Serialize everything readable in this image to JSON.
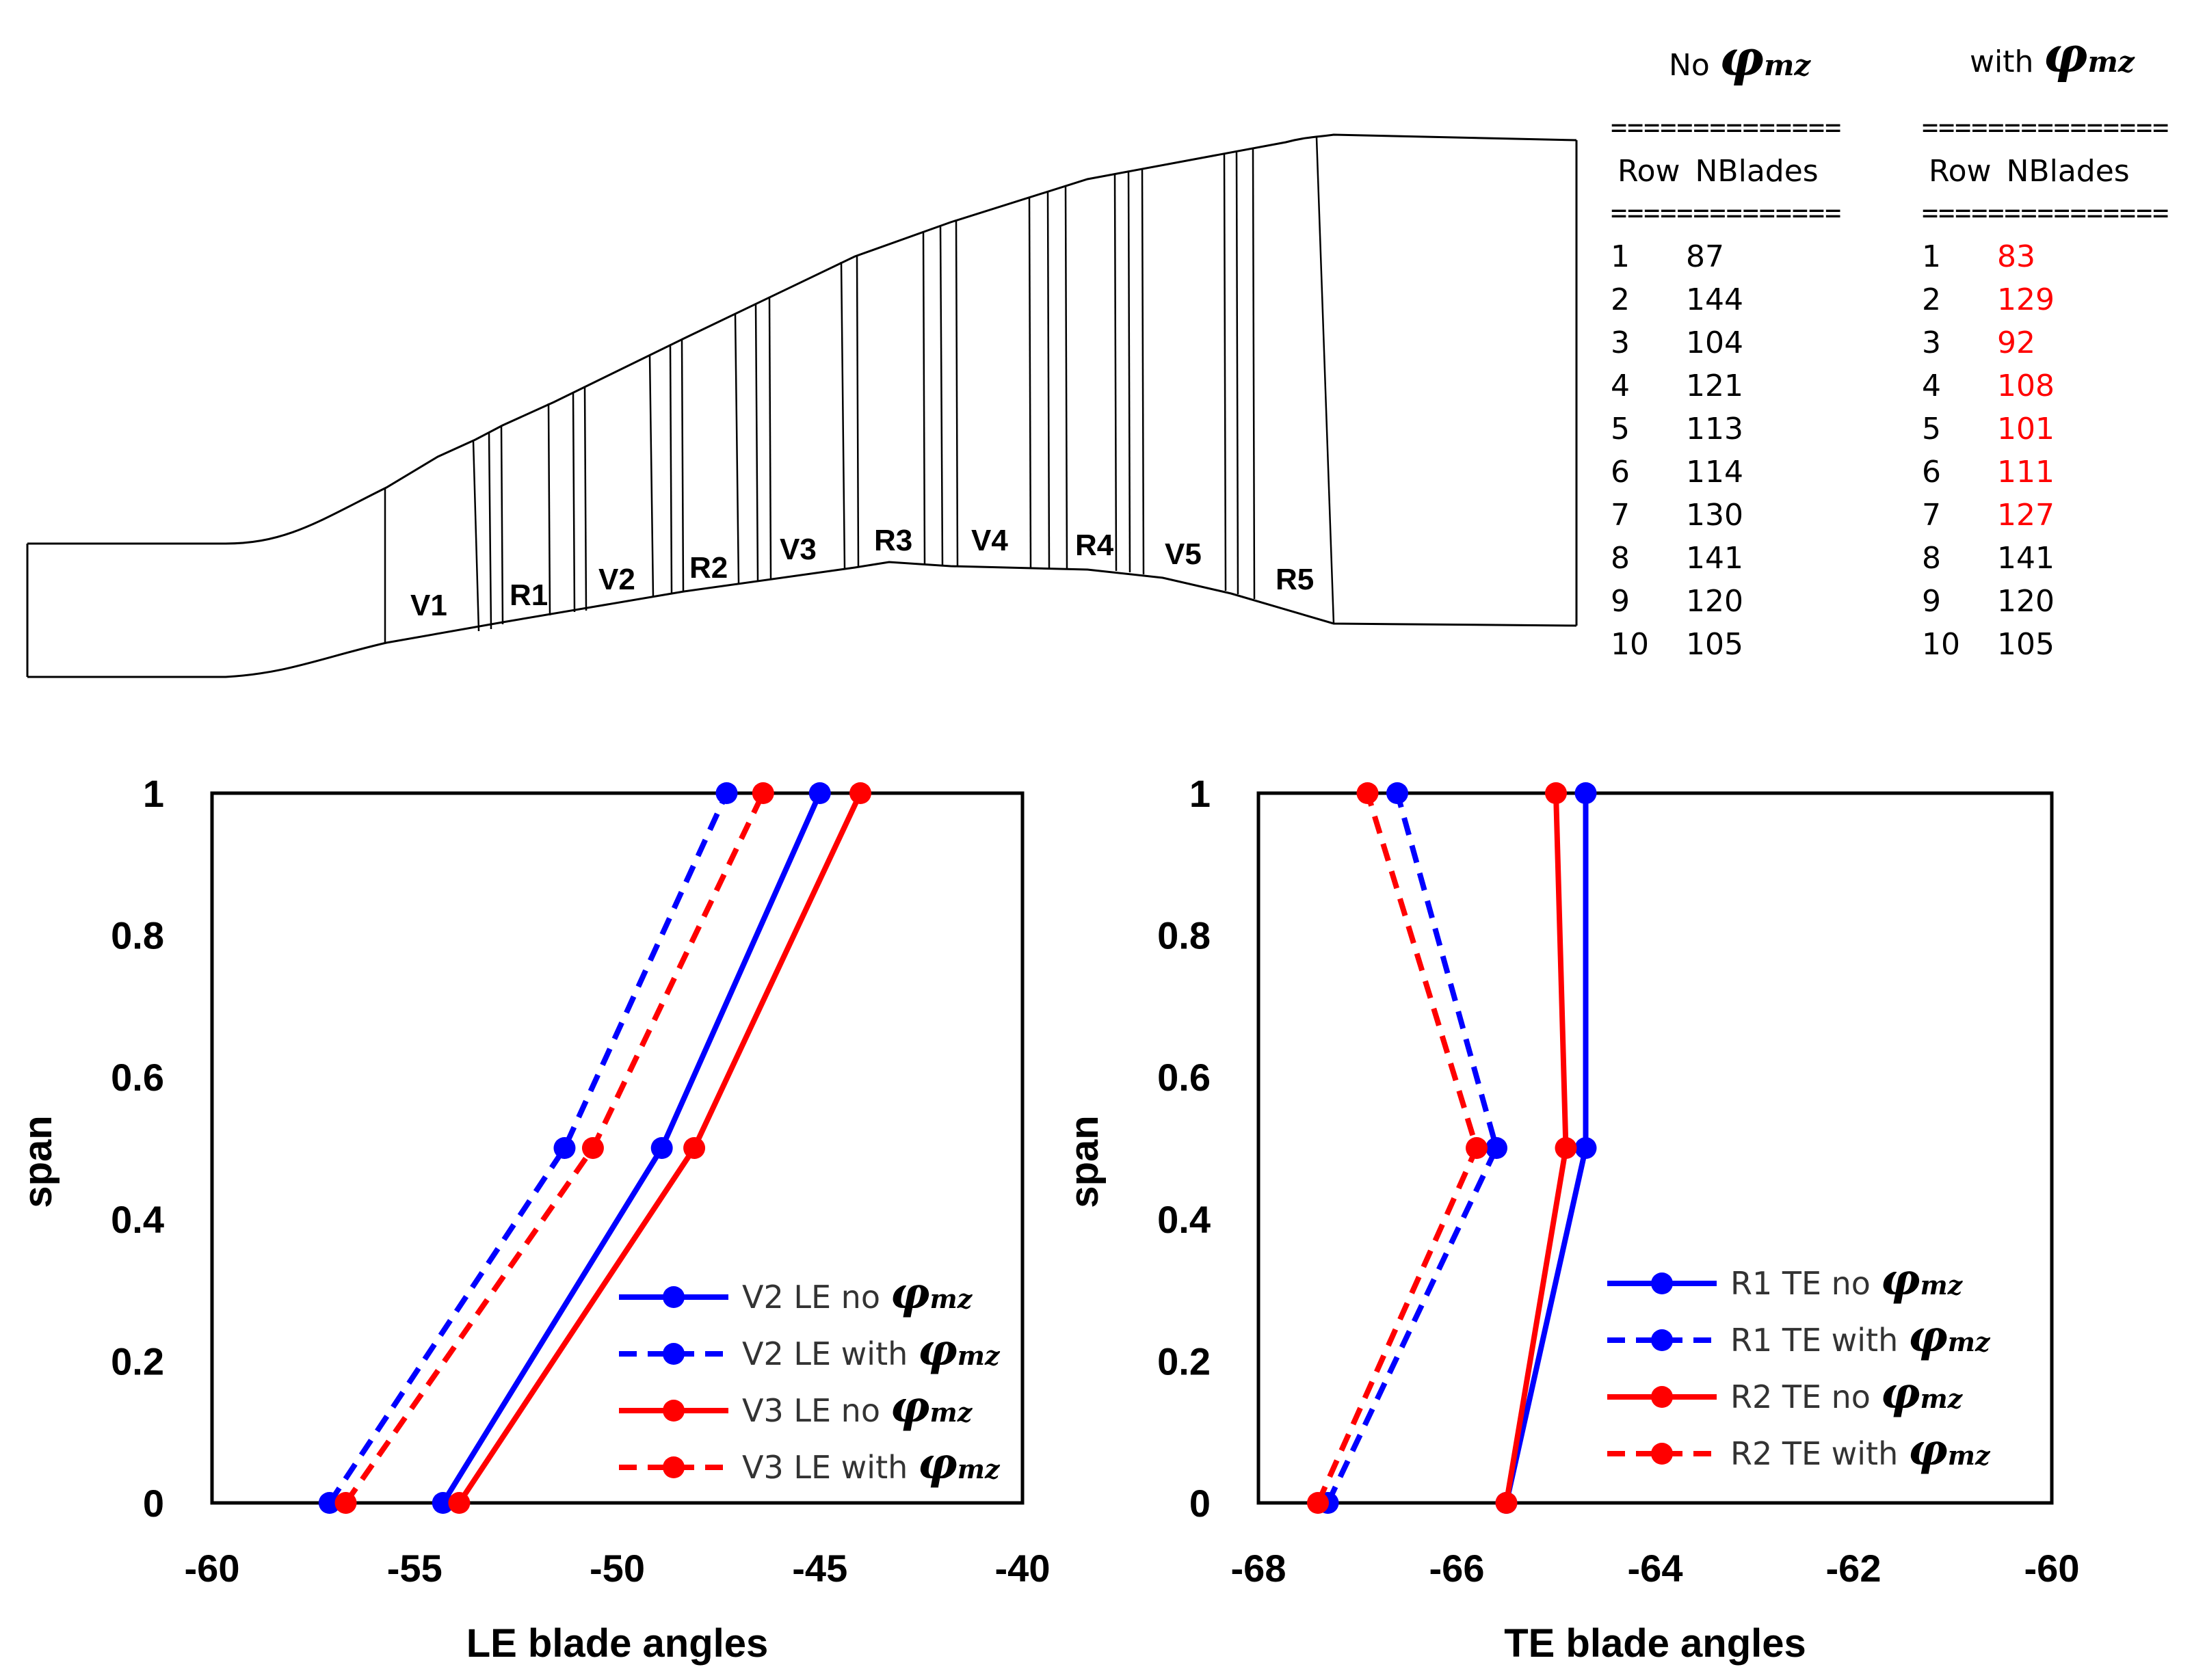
{
  "tables": {
    "left": {
      "title_prefix": "No ",
      "phi": "φ",
      "phi_sub": "mz",
      "separator": "==============",
      "header_row": "Row",
      "header_blades": "NBlades",
      "rows": [
        {
          "row": "1",
          "blades": "87",
          "changed": false
        },
        {
          "row": "2",
          "blades": "144",
          "changed": false
        },
        {
          "row": "3",
          "blades": "104",
          "changed": false
        },
        {
          "row": "4",
          "blades": "121",
          "changed": false
        },
        {
          "row": "5",
          "blades": "113",
          "changed": false
        },
        {
          "row": "6",
          "blades": "114",
          "changed": false
        },
        {
          "row": "7",
          "blades": "130",
          "changed": false
        },
        {
          "row": "8",
          "blades": "141",
          "changed": false
        },
        {
          "row": "9",
          "blades": "120",
          "changed": false
        },
        {
          "row": "10",
          "blades": "105",
          "changed": false
        }
      ]
    },
    "right": {
      "title_prefix": "with ",
      "phi": "φ",
      "phi_sub": "mz",
      "separator": "===============",
      "header_row": "Row",
      "header_blades": "NBlades",
      "rows": [
        {
          "row": "1",
          "blades": "83",
          "changed": true
        },
        {
          "row": "2",
          "blades": "129",
          "changed": true
        },
        {
          "row": "3",
          "blades": "92",
          "changed": true
        },
        {
          "row": "4",
          "blades": "108",
          "changed": true
        },
        {
          "row": "5",
          "blades": "101",
          "changed": true
        },
        {
          "row": "6",
          "blades": "111",
          "changed": true
        },
        {
          "row": "7",
          "blades": "127",
          "changed": true
        },
        {
          "row": "8",
          "blades": "141",
          "changed": false
        },
        {
          "row": "9",
          "blades": "120",
          "changed": false
        },
        {
          "row": "10",
          "blades": "105",
          "changed": false
        }
      ]
    }
  },
  "meridional": {
    "row_labels": [
      "V1",
      "R1",
      "V2",
      "R2",
      "V3",
      "R3",
      "V4",
      "R4",
      "V5",
      "R5"
    ]
  },
  "colors": {
    "blue": "#0000ff",
    "red": "#ff0000",
    "changed": "#ff0000"
  },
  "chart_data": [
    {
      "type": "line",
      "title": "",
      "xlabel": "LE blade angles",
      "ylabel": "span",
      "xlim": [
        -60,
        -40
      ],
      "ylim": [
        0,
        1
      ],
      "xticks": [
        "-60",
        "-55",
        "-50",
        "-45",
        "-40"
      ],
      "yticks": [
        "0",
        "0.2",
        "0.4",
        "0.6",
        "0.8",
        "1"
      ],
      "legend_position": "bottom-right",
      "series": [
        {
          "name": "V2 LE no ",
          "color": "blue",
          "dashed": false,
          "x": [
            -54.3,
            -48.9,
            -45.0
          ],
          "y": [
            0,
            0.5,
            1
          ]
        },
        {
          "name": "V2 LE with ",
          "color": "blue",
          "dashed": true,
          "x": [
            -57.1,
            -51.3,
            -47.3
          ],
          "y": [
            0,
            0.5,
            1
          ]
        },
        {
          "name": "V3 LE no ",
          "color": "red",
          "dashed": false,
          "x": [
            -53.9,
            -48.1,
            -44.0
          ],
          "y": [
            0,
            0.5,
            1
          ]
        },
        {
          "name": "V3 LE with ",
          "color": "red",
          "dashed": true,
          "x": [
            -56.7,
            -50.6,
            -46.4
          ],
          "y": [
            0,
            0.5,
            1
          ]
        }
      ]
    },
    {
      "type": "line",
      "title": "",
      "xlabel": "TE blade angles",
      "ylabel": "span",
      "xlim": [
        -68,
        -60
      ],
      "ylim": [
        0,
        1
      ],
      "xticks": [
        "-68",
        "-66",
        "-64",
        "-62",
        "-60"
      ],
      "yticks": [
        "0",
        "0.2",
        "0.4",
        "0.6",
        "0.8",
        "1"
      ],
      "legend_position": "bottom-right",
      "series": [
        {
          "name": "R1 TE no ",
          "color": "blue",
          "dashed": false,
          "x": [
            -65.5,
            -64.7,
            -64.7
          ],
          "y": [
            0,
            0.5,
            1
          ]
        },
        {
          "name": "R1 TE with ",
          "color": "blue",
          "dashed": true,
          "x": [
            -67.3,
            -65.6,
            -66.6
          ],
          "y": [
            0,
            0.5,
            1
          ]
        },
        {
          "name": "R2 TE no ",
          "color": "red",
          "dashed": false,
          "x": [
            -65.5,
            -64.9,
            -65.0
          ],
          "y": [
            0,
            0.5,
            1
          ]
        },
        {
          "name": "R2 TE with ",
          "color": "red",
          "dashed": true,
          "x": [
            -67.4,
            -65.8,
            -66.9
          ],
          "y": [
            0,
            0.5,
            1
          ]
        }
      ]
    }
  ]
}
